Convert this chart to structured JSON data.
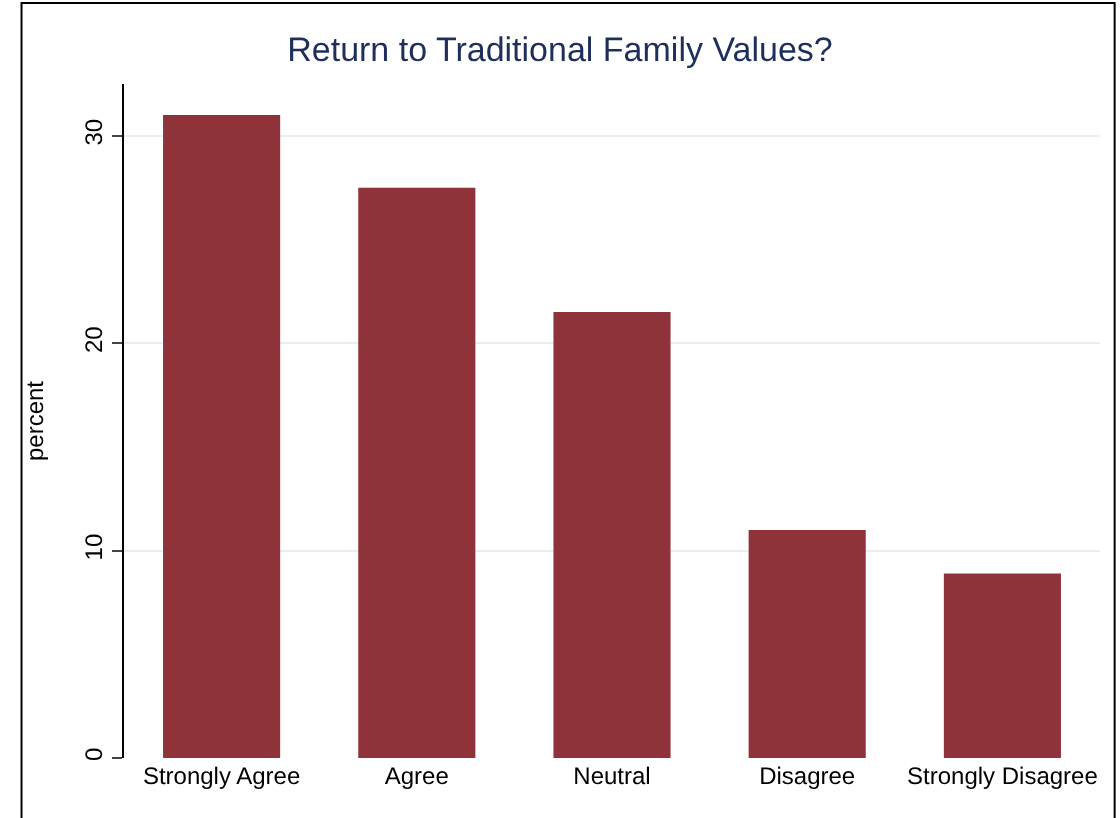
{
  "chart_data": {
    "type": "bar",
    "title": "Return to Traditional Family Values?",
    "ylabel": "percent",
    "categories": [
      "Strongly Agree",
      "Agree",
      "Neutral",
      "Disagree",
      "Strongly Disagree"
    ],
    "values": [
      31.0,
      27.5,
      21.5,
      11.0,
      8.9
    ],
    "color": "#8f333b",
    "ylim": [
      0,
      32.5
    ],
    "yticks": [
      0,
      10,
      20,
      30
    ],
    "grid": "y",
    "legend": false
  }
}
